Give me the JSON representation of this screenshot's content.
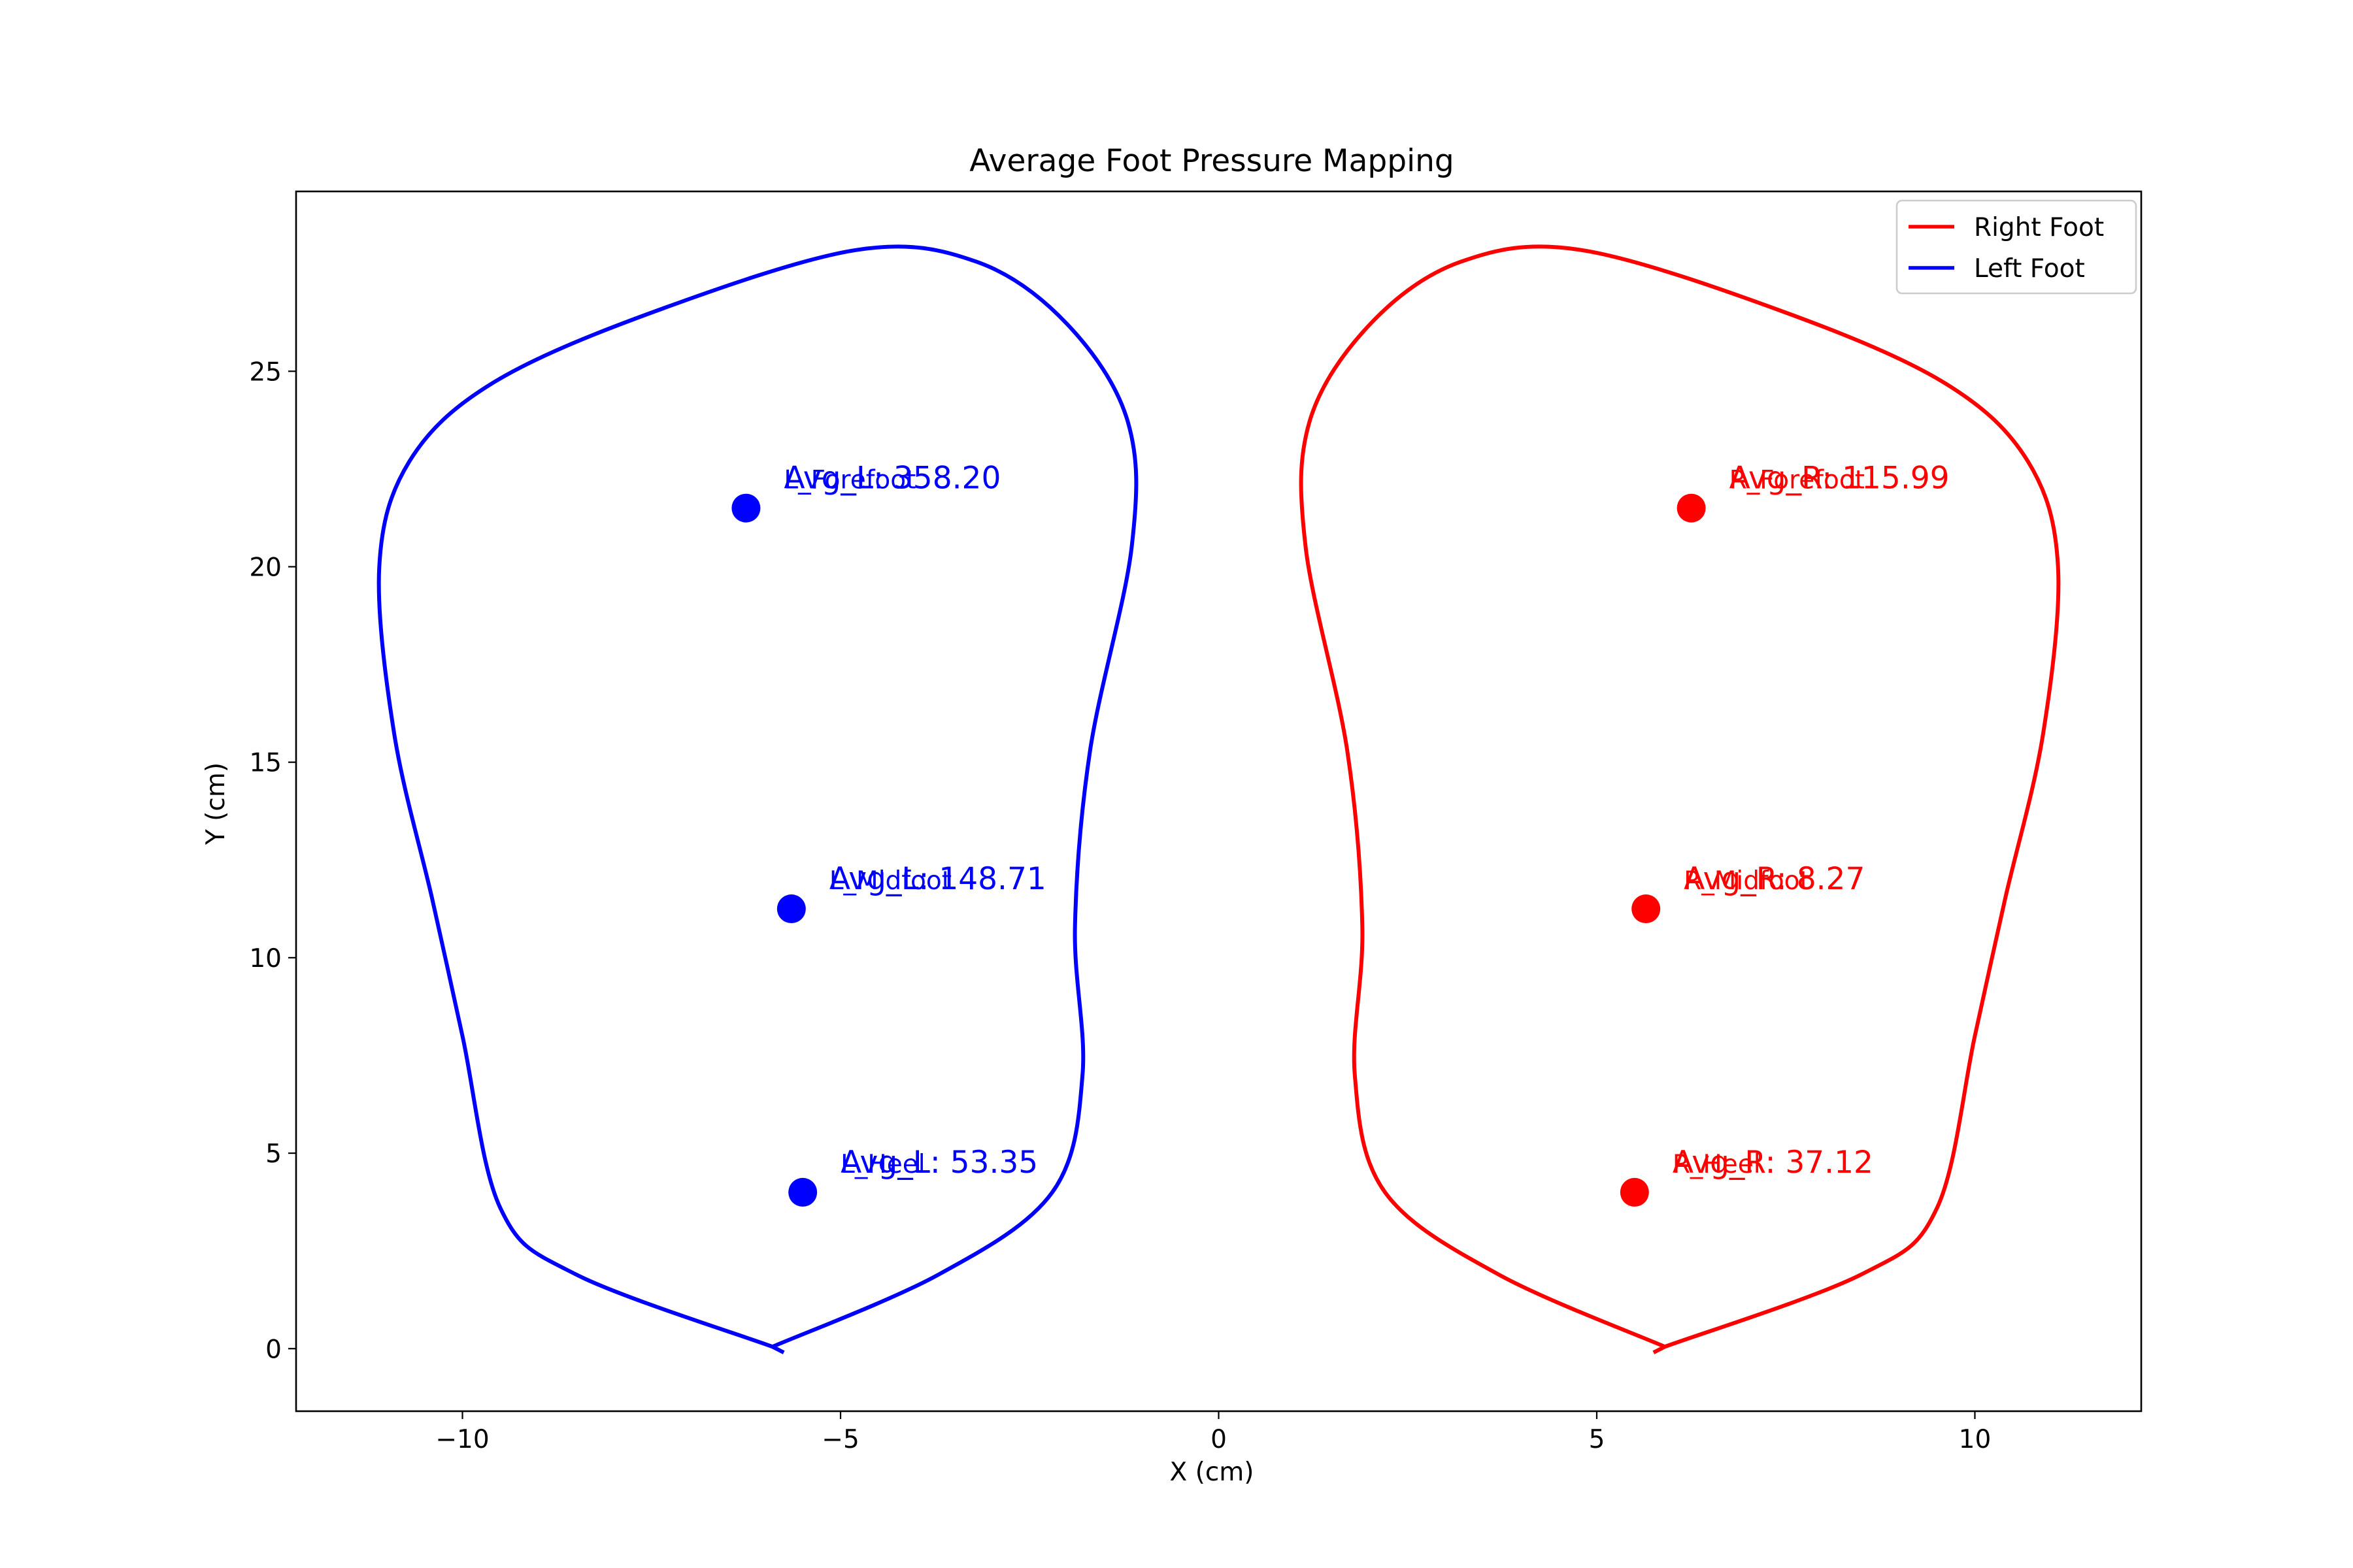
{
  "chart_data": {
    "type": "line",
    "title": "Average Foot Pressure Mapping",
    "xlabel": "X (cm)",
    "ylabel": "Y (cm)",
    "xlim": [
      -12.2,
      12.2
    ],
    "ylim": [
      -1.6,
      29.6
    ],
    "xticks": [
      -10,
      -5,
      0,
      5,
      10
    ],
    "xtick_labels": [
      "−10",
      "−5",
      "0",
      "5",
      "10"
    ],
    "yticks": [
      0,
      5,
      10,
      15,
      20,
      25
    ],
    "ytick_labels": [
      "0",
      "5",
      "10",
      "15",
      "20",
      "25"
    ],
    "grid": false,
    "legend_position": "top-right",
    "series": [
      {
        "name": "Right Foot",
        "color": "#ff0000",
        "outline": [
          [
            5.75,
            -0.1
          ],
          [
            5.9,
            0.05
          ],
          [
            8.5,
            1.9
          ],
          [
            9.5,
            3.6
          ],
          [
            10.0,
            8.0
          ],
          [
            10.4,
            11.5
          ],
          [
            10.9,
            15.7
          ],
          [
            11.1,
            20.0
          ],
          [
            10.7,
            22.7
          ],
          [
            9.6,
            24.7
          ],
          [
            7.5,
            26.5
          ],
          [
            4.8,
            28.1
          ],
          [
            3.2,
            27.8
          ],
          [
            2.0,
            26.2
          ],
          [
            1.2,
            23.7
          ],
          [
            1.15,
            20.5
          ],
          [
            1.7,
            15.3
          ],
          [
            1.9,
            10.8
          ],
          [
            1.8,
            7.0
          ],
          [
            2.2,
            4.0
          ],
          [
            3.7,
            1.9
          ],
          [
            5.9,
            0.05
          ]
        ],
        "points": [
          {
            "zone": "R_Forefoot",
            "x": 6.25,
            "y": 21.5,
            "avg_label": "Avg_R: 115.99"
          },
          {
            "zone": "R_Midfoot",
            "x": 5.65,
            "y": 11.25,
            "avg_label": "Avg_R: 8.27"
          },
          {
            "zone": "R_Heel",
            "x": 5.5,
            "y": 4.0,
            "avg_label": "Avg_R: 37.12"
          }
        ]
      },
      {
        "name": "Left Foot",
        "color": "#0000ff",
        "outline": [
          [
            -5.75,
            -0.1
          ],
          [
            -5.9,
            0.05
          ],
          [
            -8.5,
            1.9
          ],
          [
            -9.5,
            3.6
          ],
          [
            -10.0,
            8.0
          ],
          [
            -10.4,
            11.5
          ],
          [
            -10.9,
            15.7
          ],
          [
            -11.1,
            20.0
          ],
          [
            -10.7,
            22.7
          ],
          [
            -9.6,
            24.7
          ],
          [
            -7.5,
            26.5
          ],
          [
            -4.8,
            28.1
          ],
          [
            -3.2,
            27.8
          ],
          [
            -2.0,
            26.2
          ],
          [
            -1.2,
            23.7
          ],
          [
            -1.15,
            20.5
          ],
          [
            -1.7,
            15.3
          ],
          [
            -1.9,
            10.8
          ],
          [
            -1.8,
            7.0
          ],
          [
            -2.2,
            4.0
          ],
          [
            -3.7,
            1.9
          ],
          [
            -5.9,
            0.05
          ]
        ],
        "points": [
          {
            "zone": "L_Forefoot",
            "x": -6.25,
            "y": 21.5,
            "avg_label": "Avg_L: 358.20"
          },
          {
            "zone": "L_Midfoot",
            "x": -5.65,
            "y": 11.25,
            "avg_label": "Avg_L: 148.71"
          },
          {
            "zone": "L_Heel",
            "x": -5.5,
            "y": 4.0,
            "avg_label": "Avg_L: 53.35"
          }
        ]
      }
    ]
  }
}
